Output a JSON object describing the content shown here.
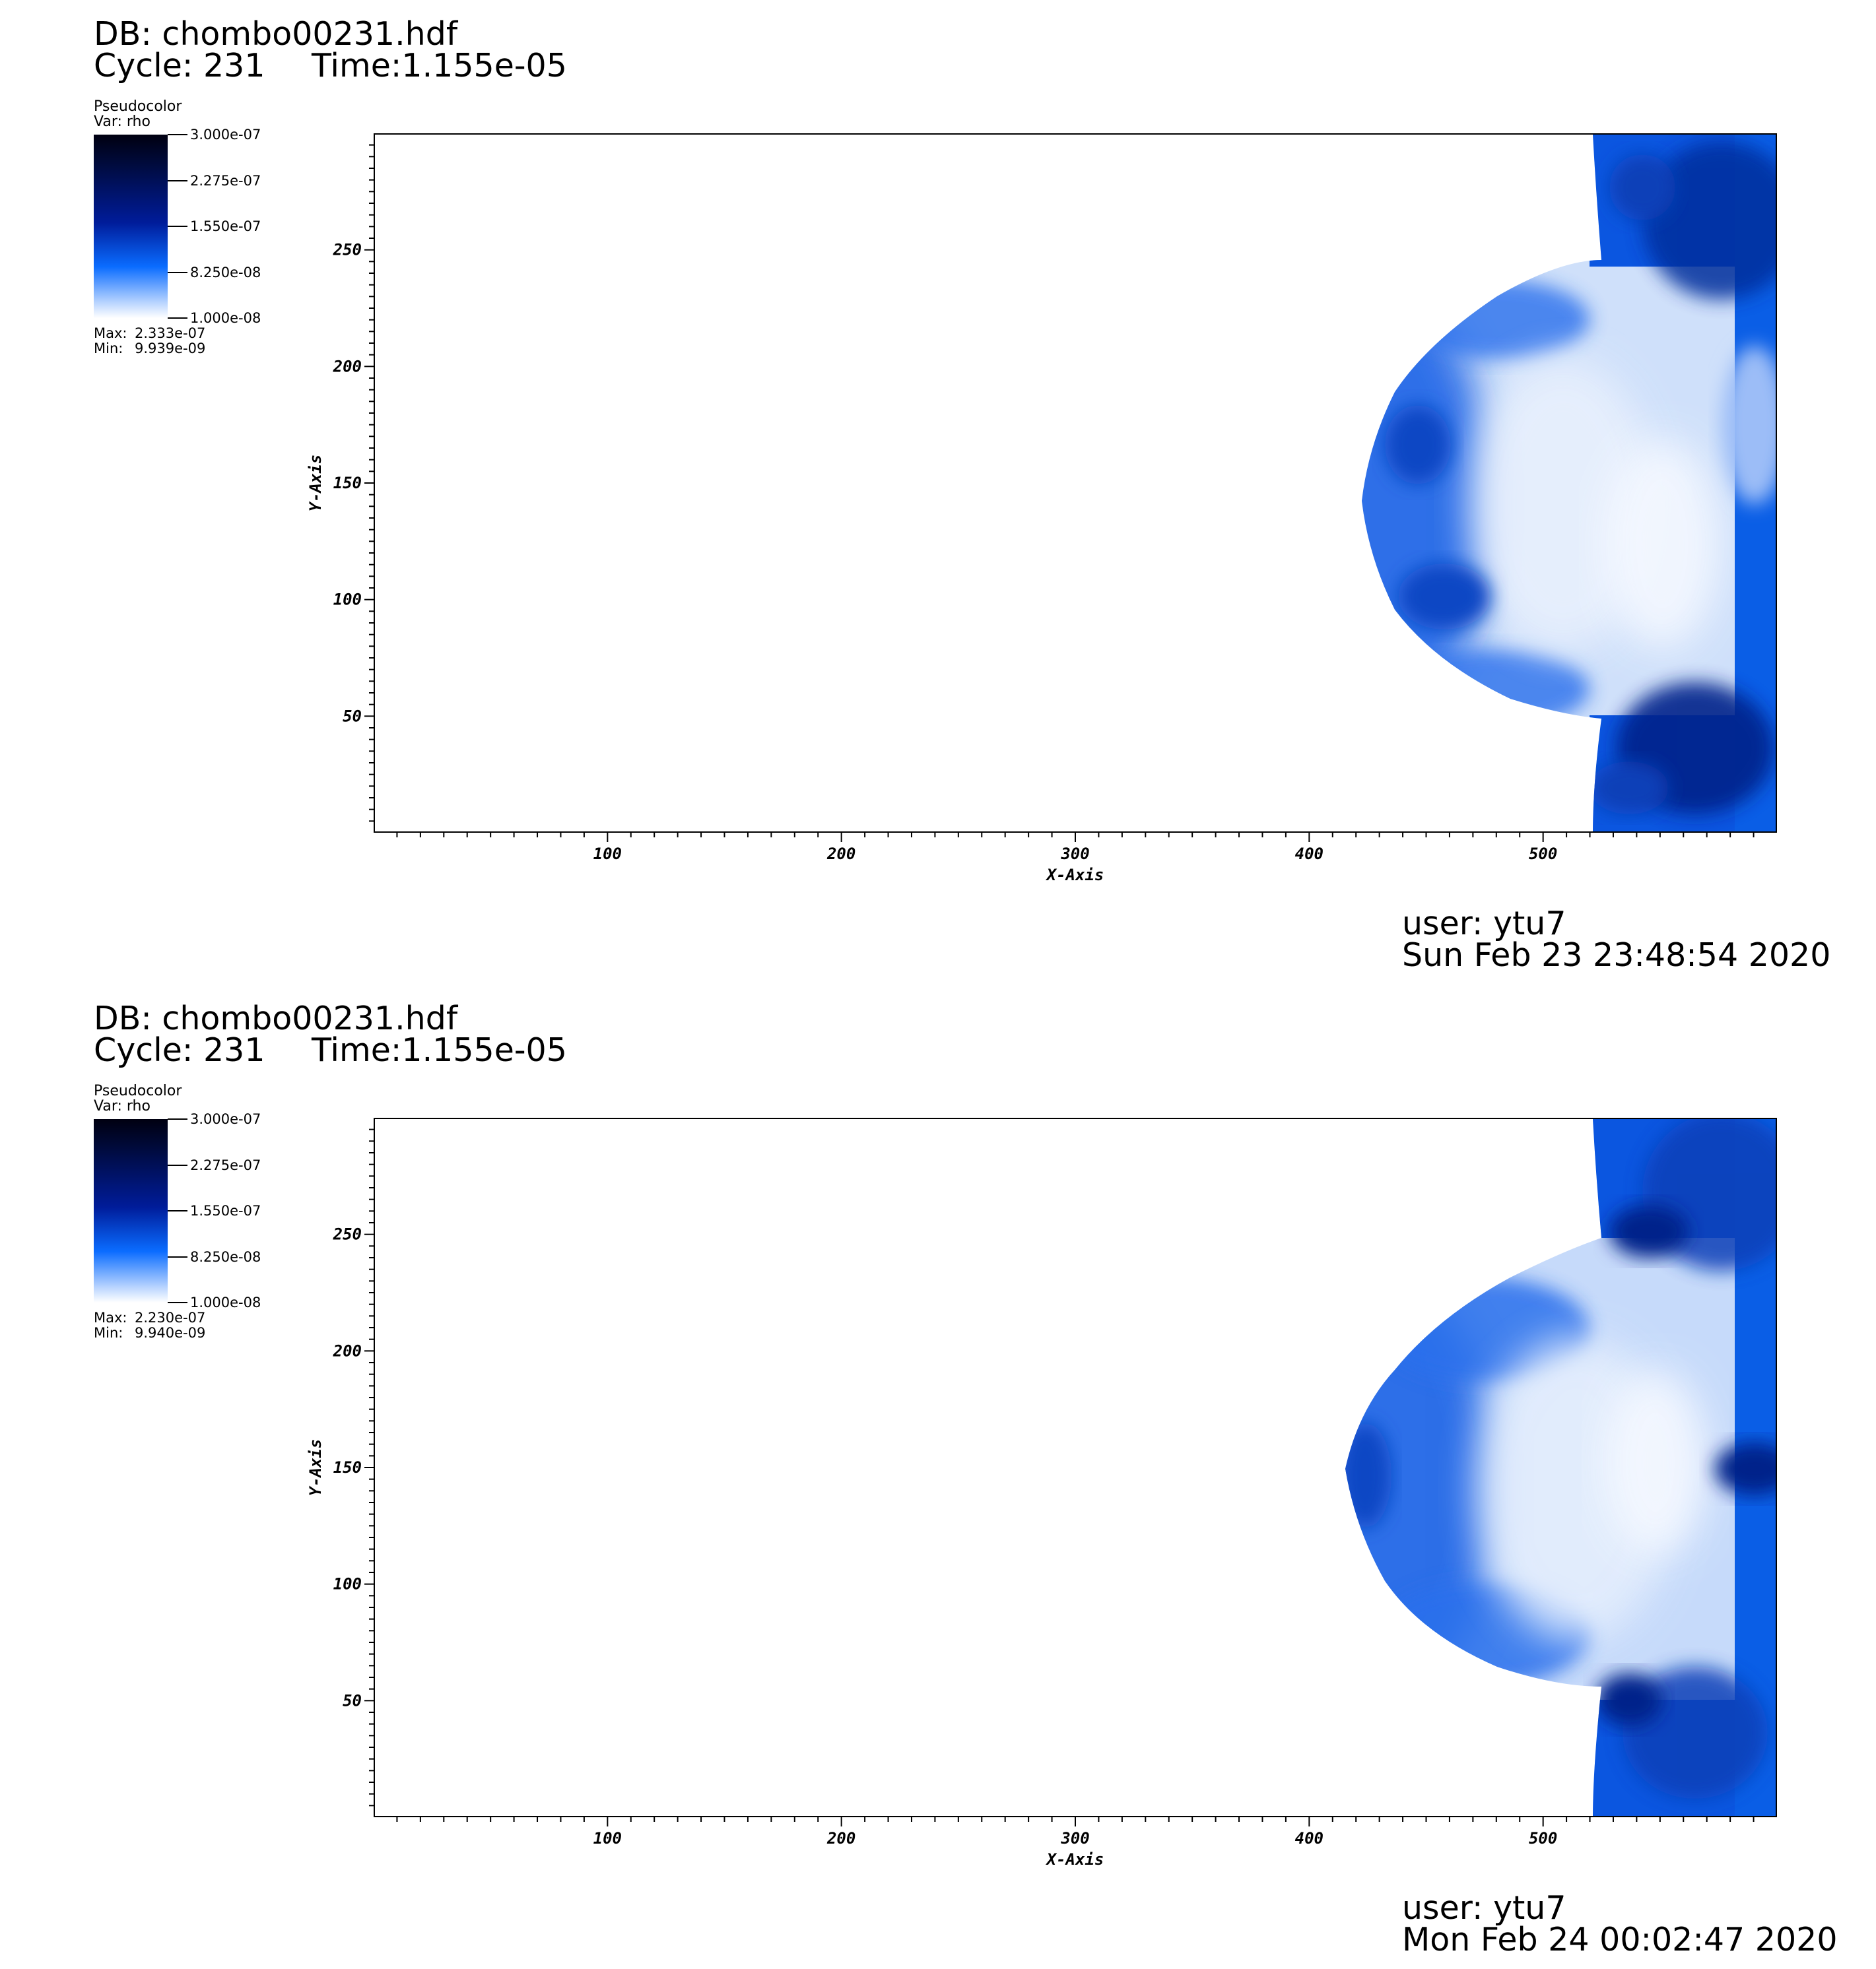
{
  "panels": [
    {
      "db_label": "DB: chombo00231.hdf",
      "cycle_label": "Cycle: 231",
      "time_label": "Time:1.155e-05",
      "legend": {
        "plot_type": "Pseudocolor",
        "variable": "Var: rho",
        "ticks": [
          "3.000e-07",
          "2.275e-07",
          "1.550e-07",
          "8.250e-08",
          "1.000e-08"
        ],
        "max_label": "Max:",
        "max_value": "2.333e-07",
        "min_label": "Min:",
        "min_value": "9.939e-09"
      },
      "user": "user: ytu7",
      "date": "Sun Feb 23 23:48:54 2020"
    },
    {
      "db_label": "DB: chombo00231.hdf",
      "cycle_label": "Cycle: 231",
      "time_label": "Time:1.155e-05",
      "legend": {
        "plot_type": "Pseudocolor",
        "variable": "Var: rho",
        "ticks": [
          "3.000e-07",
          "2.275e-07",
          "1.550e-07",
          "8.250e-08",
          "1.000e-08"
        ],
        "max_label": "Max:",
        "max_value": "2.230e-07",
        "min_label": "Min:",
        "min_value": "9.940e-09"
      },
      "user": "user: ytu7",
      "date": "Mon Feb 24 00:02:47 2020"
    }
  ],
  "chart_data": [
    {
      "type": "heatmap",
      "xlabel": "X-Axis",
      "ylabel": "Y-Axis",
      "xlim": [
        0,
        600
      ],
      "ylim": [
        0,
        300
      ],
      "x_ticks": [
        100,
        200,
        300,
        400,
        500
      ],
      "y_ticks": [
        50,
        100,
        150,
        200,
        250
      ],
      "x_tick_labels": [
        "100",
        "200",
        "300",
        "400",
        "500"
      ],
      "y_tick_labels": [
        "50",
        "100",
        "150",
        "200",
        "250"
      ],
      "colorbar": {
        "min": 1e-08,
        "max": 3e-07,
        "ticks": [
          3e-07,
          2.275e-07,
          1.55e-07,
          8.25e-08,
          1e-08
        ]
      },
      "field_max": 2.333e-07,
      "field_min": 9.939e-09,
      "colormap_colors": [
        "#ffffff",
        "#0a6cff",
        "#001c9a",
        "#000010"
      ]
    },
    {
      "type": "heatmap",
      "xlabel": "X-Axis",
      "ylabel": "Y-Axis",
      "xlim": [
        0,
        600
      ],
      "ylim": [
        0,
        300
      ],
      "x_ticks": [
        100,
        200,
        300,
        400,
        500
      ],
      "y_ticks": [
        50,
        100,
        150,
        200,
        250
      ],
      "x_tick_labels": [
        "100",
        "200",
        "300",
        "400",
        "500"
      ],
      "y_tick_labels": [
        "50",
        "100",
        "150",
        "200",
        "250"
      ],
      "colorbar": {
        "min": 1e-08,
        "max": 3e-07,
        "ticks": [
          3e-07,
          2.275e-07,
          1.55e-07,
          8.25e-08,
          1e-08
        ]
      },
      "field_max": 2.23e-07,
      "field_min": 9.94e-09,
      "colormap_colors": [
        "#ffffff",
        "#0a6cff",
        "#001c9a",
        "#000010"
      ]
    }
  ]
}
